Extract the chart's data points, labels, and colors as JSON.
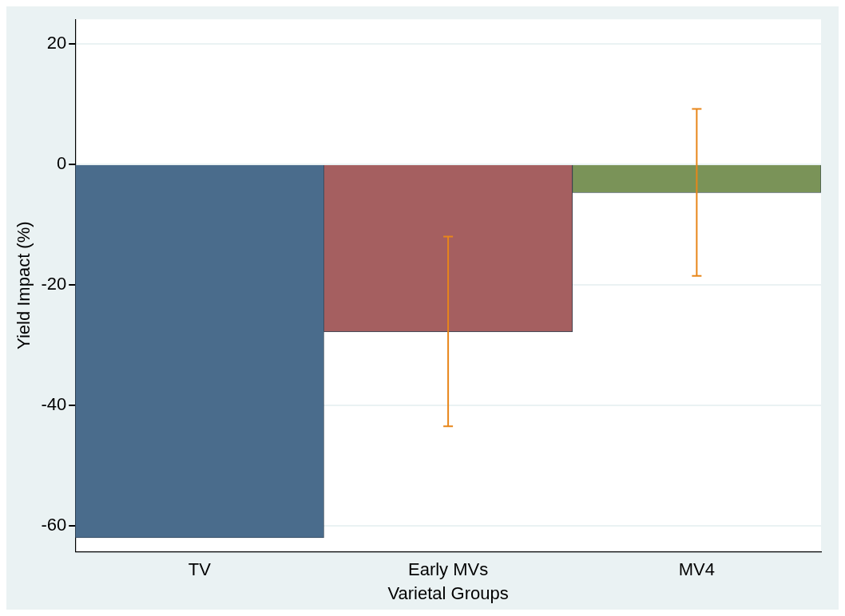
{
  "chart_data": {
    "type": "bar",
    "xlabel": "Varietal Groups",
    "ylabel": "Yield Impact (%)",
    "categories": [
      "TV",
      "Early MVs",
      "MV4"
    ],
    "values": [
      -62,
      -27.8,
      -4.7
    ],
    "colors": [
      "#4a6c8c",
      "#a55f60",
      "#7a9358"
    ],
    "errors": [
      null,
      [
        -43.5,
        -12
      ],
      [
        -18.5,
        9.2
      ]
    ],
    "ylim": [
      -64.3,
      24.1
    ],
    "yticks": [
      20,
      0,
      -20,
      -40,
      -60
    ],
    "grid": "y",
    "legend": false
  }
}
